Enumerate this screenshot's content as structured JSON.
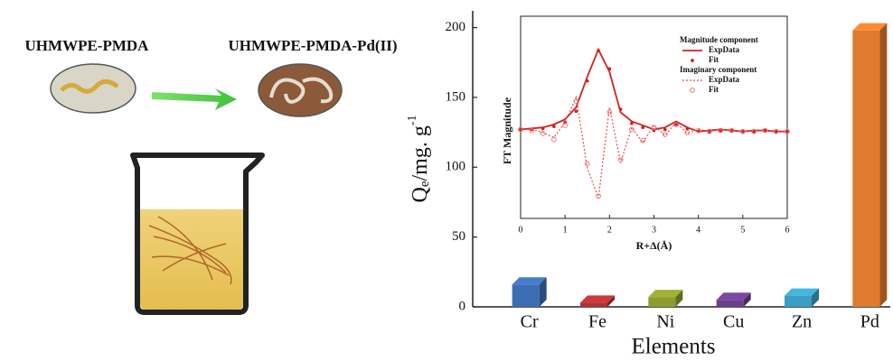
{
  "illustration": {
    "labels": [
      "UHMWPE-PMDA",
      "UHMWPE-PMDA-Pd(II)"
    ]
  },
  "chart_data": [
    {
      "type": "bar",
      "categories": [
        "Cr",
        "Fe",
        "Ni",
        "Cu",
        "Zn",
        "Pd"
      ],
      "values": [
        16,
        3,
        7,
        5,
        8,
        198
      ],
      "colors": [
        "#3b6db3",
        "#b23232",
        "#8c9c2e",
        "#6b3f8c",
        "#3a9fc2",
        "#e07a2e"
      ],
      "xlabel": "Elements",
      "ylabel": {
        "main": "Q",
        "sub": "e",
        "unit": "/mg. g",
        "sup": "-1"
      },
      "ylim": [
        0,
        212
      ],
      "yticks": [
        0,
        50,
        100,
        150,
        200
      ]
    },
    {
      "type": "line",
      "xlabel": "R+Δ(Å)",
      "ylabel": "FT Magnitude",
      "xlim": [
        0,
        6
      ],
      "xticks": [
        0,
        1,
        2,
        3,
        4,
        5,
        6
      ],
      "ylim": [
        -1,
        1
      ],
      "legend_groups": [
        "Magnitude component",
        "Imaginary component"
      ],
      "x": [
        0,
        0.25,
        0.5,
        0.75,
        1,
        1.25,
        1.5,
        1.75,
        2,
        2.25,
        2.5,
        2.75,
        3,
        3.25,
        3.5,
        3.75,
        4,
        4.25,
        4.5,
        4.75,
        5,
        5.25,
        5.5,
        5.75,
        6
      ],
      "series": [
        {
          "name": "ExpData",
          "group": 0,
          "style": "line",
          "color": "#d42020",
          "values": [
            -0.12,
            -0.11,
            -0.1,
            -0.07,
            -0.02,
            0.1,
            0.4,
            0.67,
            0.45,
            0.05,
            -0.04,
            -0.08,
            -0.12,
            -0.1,
            -0.04,
            -0.1,
            -0.14,
            -0.13,
            -0.12,
            -0.13,
            -0.14,
            -0.13,
            -0.13,
            -0.14,
            -0.14
          ]
        },
        {
          "name": "Fit",
          "group": 0,
          "style": "dots",
          "color": "#d42020",
          "values": [
            -0.12,
            -0.12,
            -0.11,
            -0.09,
            -0.05,
            0.06,
            0.36,
            0.66,
            0.48,
            0.08,
            -0.06,
            -0.1,
            -0.13,
            -0.12,
            -0.07,
            -0.11,
            -0.14,
            -0.14,
            -0.13,
            -0.13,
            -0.14,
            -0.14,
            -0.13,
            -0.14,
            -0.14
          ]
        },
        {
          "name": "ExpData",
          "group": 1,
          "style": "dashed",
          "color": "#e05050",
          "values": [
            -0.12,
            -0.12,
            -0.15,
            -0.2,
            -0.05,
            0.2,
            -0.5,
            -0.8,
            0.1,
            -0.45,
            -0.1,
            -0.25,
            -0.08,
            -0.18,
            -0.05,
            -0.16,
            -0.12,
            -0.14,
            -0.12,
            -0.13,
            -0.14,
            -0.13,
            -0.13,
            -0.14,
            -0.14
          ]
        },
        {
          "name": "Fit",
          "group": 1,
          "style": "circles",
          "color": "#e87070",
          "values": [
            -0.12,
            -0.13,
            -0.16,
            -0.22,
            -0.08,
            0.16,
            -0.46,
            -0.78,
            0.05,
            -0.42,
            -0.12,
            -0.23,
            -0.1,
            -0.17,
            -0.07,
            -0.15,
            -0.13,
            -0.14,
            -0.13,
            -0.13,
            -0.14,
            -0.14,
            -0.13,
            -0.14,
            -0.14
          ]
        }
      ]
    }
  ]
}
